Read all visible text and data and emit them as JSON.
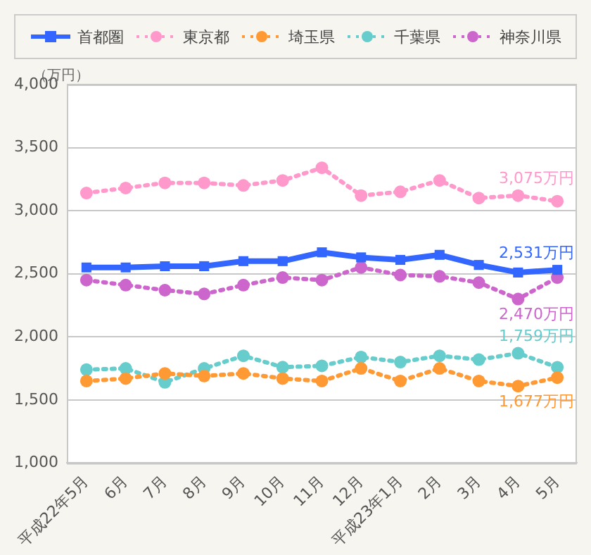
{
  "chart_data": {
    "type": "line",
    "ylabel": "（万円）",
    "legend": "top",
    "grid": "y",
    "categories": [
      "平成22年5月",
      "6月",
      "7月",
      "8月",
      "9月",
      "10月",
      "11月",
      "12月",
      "平成23年1月",
      "2月",
      "3月",
      "4月",
      "5月"
    ],
    "ylim": [
      1000,
      4000
    ],
    "yticks": [
      {
        "value": 1000,
        "label": "1,000"
      },
      {
        "value": 1500,
        "label": "1,500"
      },
      {
        "value": 2000,
        "label": "2,000"
      },
      {
        "value": 2500,
        "label": "2,500"
      },
      {
        "value": 3000,
        "label": "3,000"
      },
      {
        "value": 3500,
        "label": "3,500"
      },
      {
        "value": 4000,
        "label": "4,000"
      }
    ],
    "series": [
      {
        "name": "首都圏",
        "color": "#3366ff",
        "line_style": "solid",
        "marker": "square",
        "values": [
          2550,
          2550,
          2560,
          2560,
          2600,
          2600,
          2670,
          2630,
          2610,
          2650,
          2570,
          2510,
          2531
        ]
      },
      {
        "name": "東京都",
        "color": "#ff99cc",
        "line_style": "dotted",
        "marker": "circle",
        "values": [
          3140,
          3180,
          3220,
          3220,
          3200,
          3240,
          3340,
          3120,
          3150,
          3240,
          3100,
          3120,
          3075
        ]
      },
      {
        "name": "埼玉県",
        "color": "#ff9933",
        "line_style": "dotted",
        "marker": "circle",
        "values": [
          1650,
          1670,
          1710,
          1690,
          1710,
          1670,
          1650,
          1750,
          1650,
          1750,
          1650,
          1610,
          1677
        ]
      },
      {
        "name": "千葉県",
        "color": "#66cccc",
        "line_style": "dotted",
        "marker": "circle",
        "values": [
          1740,
          1750,
          1640,
          1750,
          1850,
          1760,
          1770,
          1840,
          1800,
          1850,
          1820,
          1870,
          1759
        ]
      },
      {
        "name": "神奈川県",
        "color": "#cc66cc",
        "line_style": "dotted",
        "marker": "circle",
        "values": [
          2450,
          2410,
          2370,
          2340,
          2410,
          2470,
          2450,
          2550,
          2490,
          2480,
          2430,
          2300,
          2470
        ]
      }
    ],
    "annotations": [
      {
        "text": "3,075万円",
        "x": "5月",
        "y": 3075
      },
      {
        "text": "2,531万円",
        "x": "5月",
        "y": 2531
      },
      {
        "text": "2,470万円",
        "x": "5月",
        "y": 2470
      },
      {
        "text": "1,759万円",
        "x": "5月",
        "y": 1759
      },
      {
        "text": "1,677万円",
        "x": "5月",
        "y": 1677
      }
    ]
  }
}
